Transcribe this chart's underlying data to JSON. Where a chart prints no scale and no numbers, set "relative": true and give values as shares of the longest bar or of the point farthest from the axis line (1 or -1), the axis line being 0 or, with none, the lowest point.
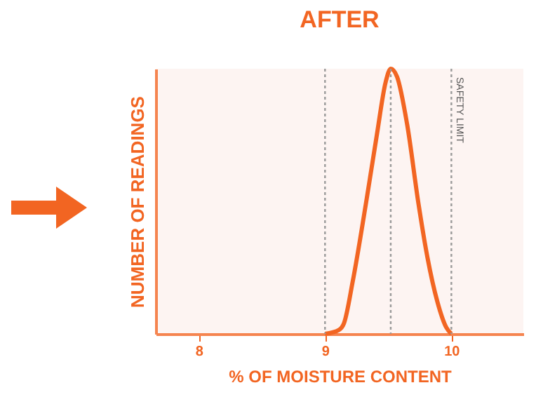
{
  "chart_data": {
    "type": "line",
    "title": "AFTER",
    "xlabel": "% OF MOISTURE CONTENT",
    "ylabel": "NUMBER OF READINGS",
    "relative": true,
    "x": [
      9.0,
      9.11,
      9.15,
      9.22,
      9.33,
      9.41,
      9.48,
      9.52,
      9.57,
      9.65,
      9.74,
      9.81,
      9.89,
      9.96,
      10.0
    ],
    "values": [
      0,
      0.015,
      0.04,
      0.2,
      0.51,
      0.75,
      0.95,
      1,
      0.97,
      0.79,
      0.49,
      0.29,
      0.12,
      0.024,
      0
    ],
    "color": "#f26522",
    "xlim": [
      7.66,
      10.57
    ],
    "xticks": [
      8,
      9,
      10
    ],
    "ref_lines": [
      {
        "axis": "x",
        "value": 9,
        "color": "#9a9a9a",
        "line_style": "dotted"
      },
      {
        "axis": "x",
        "value": 9.52,
        "color": "#9a9a9a",
        "line_style": "dotted"
      },
      {
        "axis": "x",
        "value": 10,
        "label": "SAFETY LIMIT",
        "color": "#9a9a9a",
        "line_style": "dotted"
      }
    ],
    "line_style": "solid"
  }
}
